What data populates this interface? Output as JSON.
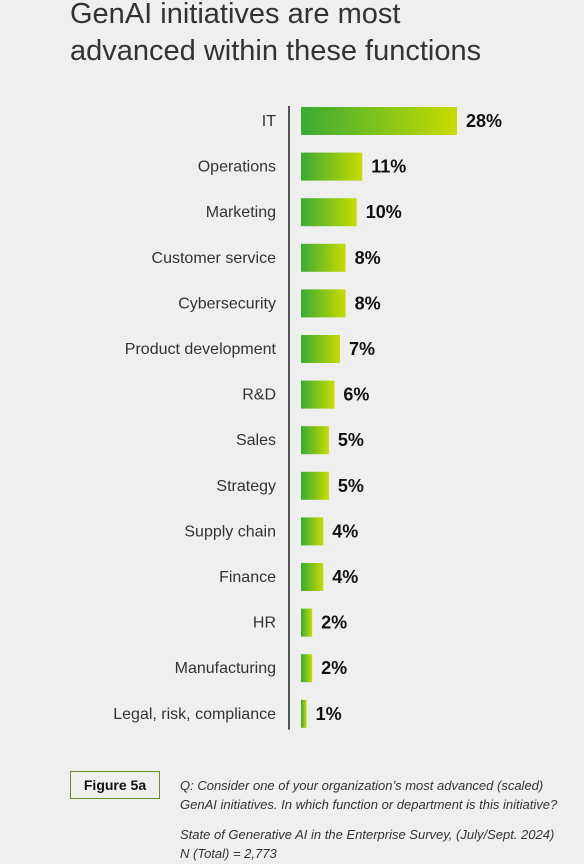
{
  "title": {
    "line1": "GenAI initiatives are most",
    "line2": "advanced within these functions"
  },
  "chart_data": {
    "type": "bar",
    "orientation": "horizontal",
    "title": "GenAI initiatives are most advanced within these functions",
    "categories": [
      "IT",
      "Operations",
      "Marketing",
      "Customer service",
      "Cybersecurity",
      "Product development",
      "R&D",
      "Sales",
      "Strategy",
      "Supply chain",
      "Finance",
      "HR",
      "Manufacturing",
      "Legal, risk, compliance"
    ],
    "values": [
      28,
      11,
      10,
      8,
      8,
      7,
      6,
      5,
      5,
      4,
      4,
      2,
      2,
      1
    ],
    "value_labels": [
      "28%",
      "11%",
      "10%",
      "8%",
      "8%",
      "7%",
      "6%",
      "5%",
      "5%",
      "4%",
      "4%",
      "2%",
      "2%",
      "1%"
    ],
    "unit": "%",
    "xlim": [
      0,
      28
    ],
    "grid": false,
    "legend": "none",
    "bar_gradient": [
      "#3aaa35",
      "#c8dc00"
    ]
  },
  "footer": {
    "figure_label": "Figure 5a",
    "question_line1": "Q: Consider one of your organization’s most advanced (scaled)",
    "question_line2": "GenAI initiatives. In which function or department is this initiative?",
    "source_line1": "State of Generative AI in the Enterprise Survey, (July/Sept. 2024)",
    "source_line2": "N (Total) = 2,773"
  }
}
